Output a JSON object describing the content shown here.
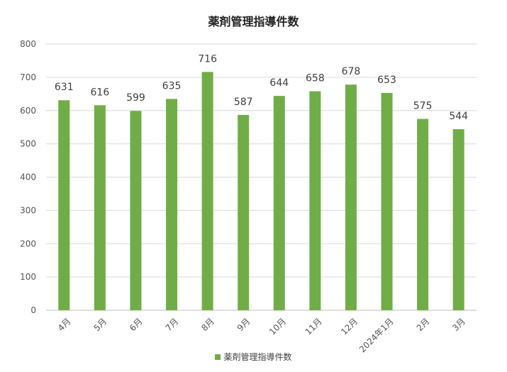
{
  "chart_data": {
    "type": "bar",
    "title": "薬剤管理指導件数",
    "categories": [
      "4月",
      "5月",
      "6月",
      "7月",
      "8月",
      "9月",
      "10月",
      "11月",
      "12月",
      "2024年1月",
      "2月",
      "3月"
    ],
    "series": [
      {
        "name": "薬剤管理指導件数",
        "values": [
          631,
          616,
          599,
          635,
          716,
          587,
          644,
          658,
          678,
          653,
          575,
          544
        ]
      }
    ],
    "ylim": [
      0,
      800
    ],
    "yticks": [
      0,
      100,
      200,
      300,
      400,
      500,
      600,
      700,
      800
    ],
    "xlabel": "",
    "ylabel": "",
    "grid": true,
    "legend": "bottom",
    "bar_color": "#70AD47",
    "data_labels": true
  }
}
